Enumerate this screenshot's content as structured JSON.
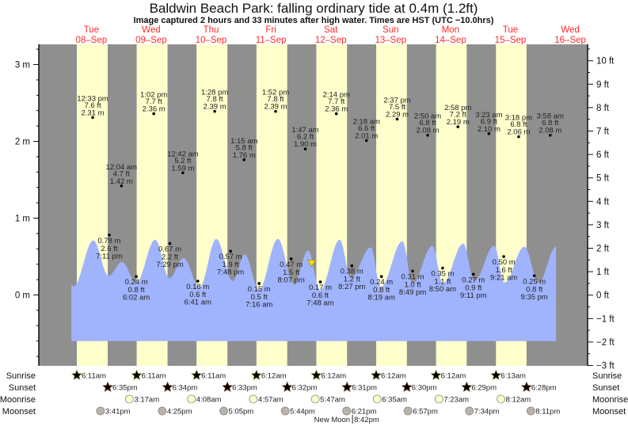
{
  "title": "Baldwin Beach Park: falling  ordinary tide at 0.4m (1.2ft)",
  "subtitle": "Image captured 2 hours and 33 minutes after high water. Times are HST (UTC −10.0hrs)",
  "days": [
    {
      "name": "Tue",
      "date": "08–Sep"
    },
    {
      "name": "Wed",
      "date": "09–Sep"
    },
    {
      "name": "Thu",
      "date": "10–Sep"
    },
    {
      "name": "Fri",
      "date": "11–Sep"
    },
    {
      "name": "Sat",
      "date": "12–Sep"
    },
    {
      "name": "Sun",
      "date": "13–Sep"
    },
    {
      "name": "Mon",
      "date": "14–Sep"
    },
    {
      "name": "Tue",
      "date": "15–Sep"
    },
    {
      "name": "Wed",
      "date": "16–Sep"
    }
  ],
  "colors": {
    "night": "#8f8f8f",
    "day": "#ffffcc",
    "water": "#a0b3fd",
    "day_label": "#ff2a2a",
    "sunrise": "#c9c632",
    "sunset": "#b0702e",
    "moonrise": "#ffffcc",
    "moonset": "#bab3ab",
    "marker": "#f0e020"
  },
  "chart_data": {
    "type": "area",
    "title": "Baldwin Beach Park: falling  ordinary tide at 0.4m (1.2ft)",
    "x_unit": "hours since 08-Sep 00:00 HST",
    "xlim": [
      -9.4,
      210
    ],
    "ylim_m": [
      -0.93,
      3.25
    ],
    "left_axis": {
      "unit": "m",
      "ticks": [
        {
          "v": 3,
          "label": "3 m"
        },
        {
          "v": 2,
          "label": "2 m"
        },
        {
          "v": 1,
          "label": "1 m"
        },
        {
          "v": 0,
          "label": "0 m"
        }
      ]
    },
    "right_axis": {
      "unit": "ft",
      "ticks": [
        {
          "v": 10,
          "label": "10 ft"
        },
        {
          "v": 9,
          "label": "9 ft"
        },
        {
          "v": 8,
          "label": "8 ft"
        },
        {
          "v": 7,
          "label": "7 ft"
        },
        {
          "v": 6,
          "label": "6 ft"
        },
        {
          "v": 5,
          "label": "5 ft"
        },
        {
          "v": 4,
          "label": "4 ft"
        },
        {
          "v": 3,
          "label": "3 ft"
        },
        {
          "v": 2,
          "label": "2 ft"
        },
        {
          "v": 1,
          "label": "1 ft"
        },
        {
          "v": 0,
          "label": "0 ft"
        },
        {
          "v": -1,
          "label": "−1 ft"
        },
        {
          "v": -2,
          "label": "−2 ft"
        },
        {
          "v": -3,
          "label": "−3 ft"
        }
      ]
    },
    "water_floor_m": -0.6,
    "water_level": [
      [
        4.0,
        0.13
      ],
      [
        4.9,
        0.11
      ],
      [
        12.8,
        0.71
      ],
      [
        18.9,
        0.25
      ],
      [
        24.3,
        0.43
      ],
      [
        30,
        0.16
      ],
      [
        37.6,
        0.72
      ],
      [
        43.3,
        0.22
      ],
      [
        49,
        0.48
      ],
      [
        55.4,
        0.1
      ],
      [
        62.1,
        0.73
      ],
      [
        68.7,
        0.18
      ],
      [
        73.5,
        0.53
      ],
      [
        79.2,
        0.07
      ],
      [
        86.8,
        0.73
      ],
      [
        93.2,
        0.14
      ],
      [
        98.9,
        0.58
      ],
      [
        103.7,
        0.06
      ],
      [
        111.6,
        0.72
      ],
      [
        116,
        0.22
      ],
      [
        124,
        0.62
      ],
      [
        128,
        0.1
      ],
      [
        136.7,
        0.7
      ],
      [
        140.8,
        0.15
      ],
      [
        148.7,
        0.64
      ],
      [
        152.9,
        0.15
      ],
      [
        161.1,
        0.67
      ],
      [
        165.5,
        0.18
      ],
      [
        173.5,
        0.64
      ],
      [
        177.6,
        0.16
      ],
      [
        185.6,
        0.63
      ],
      [
        191.3,
        0.16
      ],
      [
        198.3,
        0.63
      ]
    ],
    "current": {
      "day": 4,
      "time": "4:20 am",
      "height_m": 0.4
    },
    "extremes": [
      {
        "type": "high",
        "day": 0,
        "time": "12:33 pm",
        "ft": "7.6 ft",
        "m": "2.31 m",
        "height_m": 2.31
      },
      {
        "type": "low",
        "day": 0,
        "time": "7:11 pm",
        "ft": "2.6 ft",
        "m": "0.78 m",
        "height_m": 0.78
      },
      {
        "type": "high",
        "day": 1,
        "time": "12:04 am",
        "ft": "4.7 ft",
        "m": "1.42 m",
        "height_m": 1.42
      },
      {
        "type": "low",
        "day": 1,
        "time": "6:02 am",
        "ft": "0.8 ft",
        "m": "0.24 m",
        "height_m": 0.24
      },
      {
        "type": "high",
        "day": 1,
        "time": "1:02 pm",
        "ft": "7.7 ft",
        "m": "2.36 m",
        "height_m": 2.36
      },
      {
        "type": "low",
        "day": 1,
        "time": "7:29 pm",
        "ft": "2.2 ft",
        "m": "0.67 m",
        "height_m": 0.67
      },
      {
        "type": "high",
        "day": 2,
        "time": "12:42 am",
        "ft": "5.2 ft",
        "m": "1.59 m",
        "height_m": 1.59
      },
      {
        "type": "low",
        "day": 2,
        "time": "6:41 am",
        "ft": "0.6 ft",
        "m": "0.18 m",
        "height_m": 0.18
      },
      {
        "type": "high",
        "day": 2,
        "time": "1:28 pm",
        "ft": "7.8 ft",
        "m": "2.39 m",
        "height_m": 2.39
      },
      {
        "type": "low",
        "day": 2,
        "time": "7:48 pm",
        "ft": "1.9 ft",
        "m": "0.57 m",
        "height_m": 0.57
      },
      {
        "type": "high",
        "day": 3,
        "time": "1:15 am",
        "ft": "5.8 ft",
        "m": "1.76 m",
        "height_m": 1.76
      },
      {
        "type": "low",
        "day": 3,
        "time": "7:16 am",
        "ft": "0.5 ft",
        "m": "0.15 m",
        "height_m": 0.15
      },
      {
        "type": "high",
        "day": 3,
        "time": "1:52 pm",
        "ft": "7.8 ft",
        "m": "2.39 m",
        "height_m": 2.39
      },
      {
        "type": "low",
        "day": 3,
        "time": "8:07 pm",
        "ft": "1.5 ft",
        "m": "0.47 m",
        "height_m": 0.47
      },
      {
        "type": "high",
        "day": 4,
        "time": "1:47 am",
        "ft": "6.2 ft",
        "m": "1.90 m",
        "height_m": 1.9
      },
      {
        "type": "low",
        "day": 4,
        "time": "7:48 am",
        "ft": "0.6 ft",
        "m": "0.17 m",
        "height_m": 0.17
      },
      {
        "type": "high",
        "day": 4,
        "time": "2:14 pm",
        "ft": "7.7 ft",
        "m": "2.36 m",
        "height_m": 2.36
      },
      {
        "type": "low",
        "day": 4,
        "time": "8:27 pm",
        "ft": "1.2 ft",
        "m": "0.38 m",
        "height_m": 0.38
      },
      {
        "type": "high",
        "day": 5,
        "time": "2:18 am",
        "ft": "6.6 ft",
        "m": "2.01 m",
        "height_m": 2.01
      },
      {
        "type": "low",
        "day": 5,
        "time": "8:19 am",
        "ft": "0.8 ft",
        "m": "0.24 m",
        "height_m": 0.24
      },
      {
        "type": "high",
        "day": 5,
        "time": "2:37 pm",
        "ft": "7.5 ft",
        "m": "2.29 m",
        "height_m": 2.29
      },
      {
        "type": "low",
        "day": 5,
        "time": "8:49 pm",
        "ft": "1.0 ft",
        "m": "0.31 m",
        "height_m": 0.31
      },
      {
        "type": "high",
        "day": 6,
        "time": "2:50 am",
        "ft": "6.8 ft",
        "m": "2.08 m",
        "height_m": 2.08
      },
      {
        "type": "low",
        "day": 6,
        "time": "8:50 am",
        "ft": "1.1 ft",
        "m": "0.35 m",
        "height_m": 0.35
      },
      {
        "type": "high",
        "day": 6,
        "time": "2:58 pm",
        "ft": "7.2 ft",
        "m": "2.19 m",
        "height_m": 2.19
      },
      {
        "type": "low",
        "day": 6,
        "time": "9:11 pm",
        "ft": "0.9 ft",
        "m": "0.27 m",
        "height_m": 0.27
      },
      {
        "type": "high",
        "day": 7,
        "time": "3:23 am",
        "ft": "6.9 ft",
        "m": "2.10 m",
        "height_m": 2.1
      },
      {
        "type": "low",
        "day": 7,
        "time": "9:21 am",
        "ft": "1.6 ft",
        "m": "0.50 m",
        "height_m": 0.5
      },
      {
        "type": "high",
        "day": 7,
        "time": "3:18 pm",
        "ft": "6.8 ft",
        "m": "2.06 m",
        "height_m": 2.06
      },
      {
        "type": "low",
        "day": 7,
        "time": "9:35 pm",
        "ft": "0.8 ft",
        "m": "0.25 m",
        "height_m": 0.25
      },
      {
        "type": "high",
        "day": 8,
        "time": "3:58 am",
        "ft": "6.8 ft",
        "m": "2.08 m",
        "height_m": 2.08
      }
    ]
  },
  "rows": {
    "sunrise": {
      "label": "Sunrise",
      "events": [
        {
          "day": 0,
          "time": "6:11am"
        },
        {
          "day": 1,
          "time": "6:11am"
        },
        {
          "day": 2,
          "time": "6:11am"
        },
        {
          "day": 3,
          "time": "6:12am"
        },
        {
          "day": 4,
          "time": "6:12am"
        },
        {
          "day": 5,
          "time": "6:12am"
        },
        {
          "day": 6,
          "time": "6:12am"
        },
        {
          "day": 7,
          "time": "6:13am"
        }
      ]
    },
    "sunset": {
      "label": "Sunset",
      "events": [
        {
          "day": 0,
          "time": "6:35pm"
        },
        {
          "day": 1,
          "time": "6:34pm"
        },
        {
          "day": 2,
          "time": "6:33pm"
        },
        {
          "day": 3,
          "time": "6:32pm"
        },
        {
          "day": 4,
          "time": "6:31pm"
        },
        {
          "day": 5,
          "time": "6:30pm"
        },
        {
          "day": 6,
          "time": "6:29pm"
        },
        {
          "day": 7,
          "time": "6:28pm"
        }
      ]
    },
    "moonrise": {
      "label": "Moonrise",
      "events": [
        {
          "day": 1,
          "time": "3:17am"
        },
        {
          "day": 2,
          "time": "4:08am"
        },
        {
          "day": 3,
          "time": "4:57am"
        },
        {
          "day": 4,
          "time": "5:47am"
        },
        {
          "day": 5,
          "time": "6:35am"
        },
        {
          "day": 6,
          "time": "7:23am"
        },
        {
          "day": 7,
          "time": "8:12am"
        }
      ]
    },
    "moonset": {
      "label": "Moonset",
      "events": [
        {
          "day": 0,
          "time": "3:41pm"
        },
        {
          "day": 1,
          "time": "4:25pm"
        },
        {
          "day": 2,
          "time": "5:05pm"
        },
        {
          "day": 3,
          "time": "5:44pm"
        },
        {
          "day": 4,
          "time": "6:21pm"
        },
        {
          "day": 5,
          "time": "6:57pm"
        },
        {
          "day": 6,
          "time": "7:34pm"
        },
        {
          "day": 7,
          "time": "8:11pm"
        }
      ]
    },
    "moon_phase": {
      "label": "New Moon",
      "day": 4,
      "time": "8:42pm"
    }
  }
}
